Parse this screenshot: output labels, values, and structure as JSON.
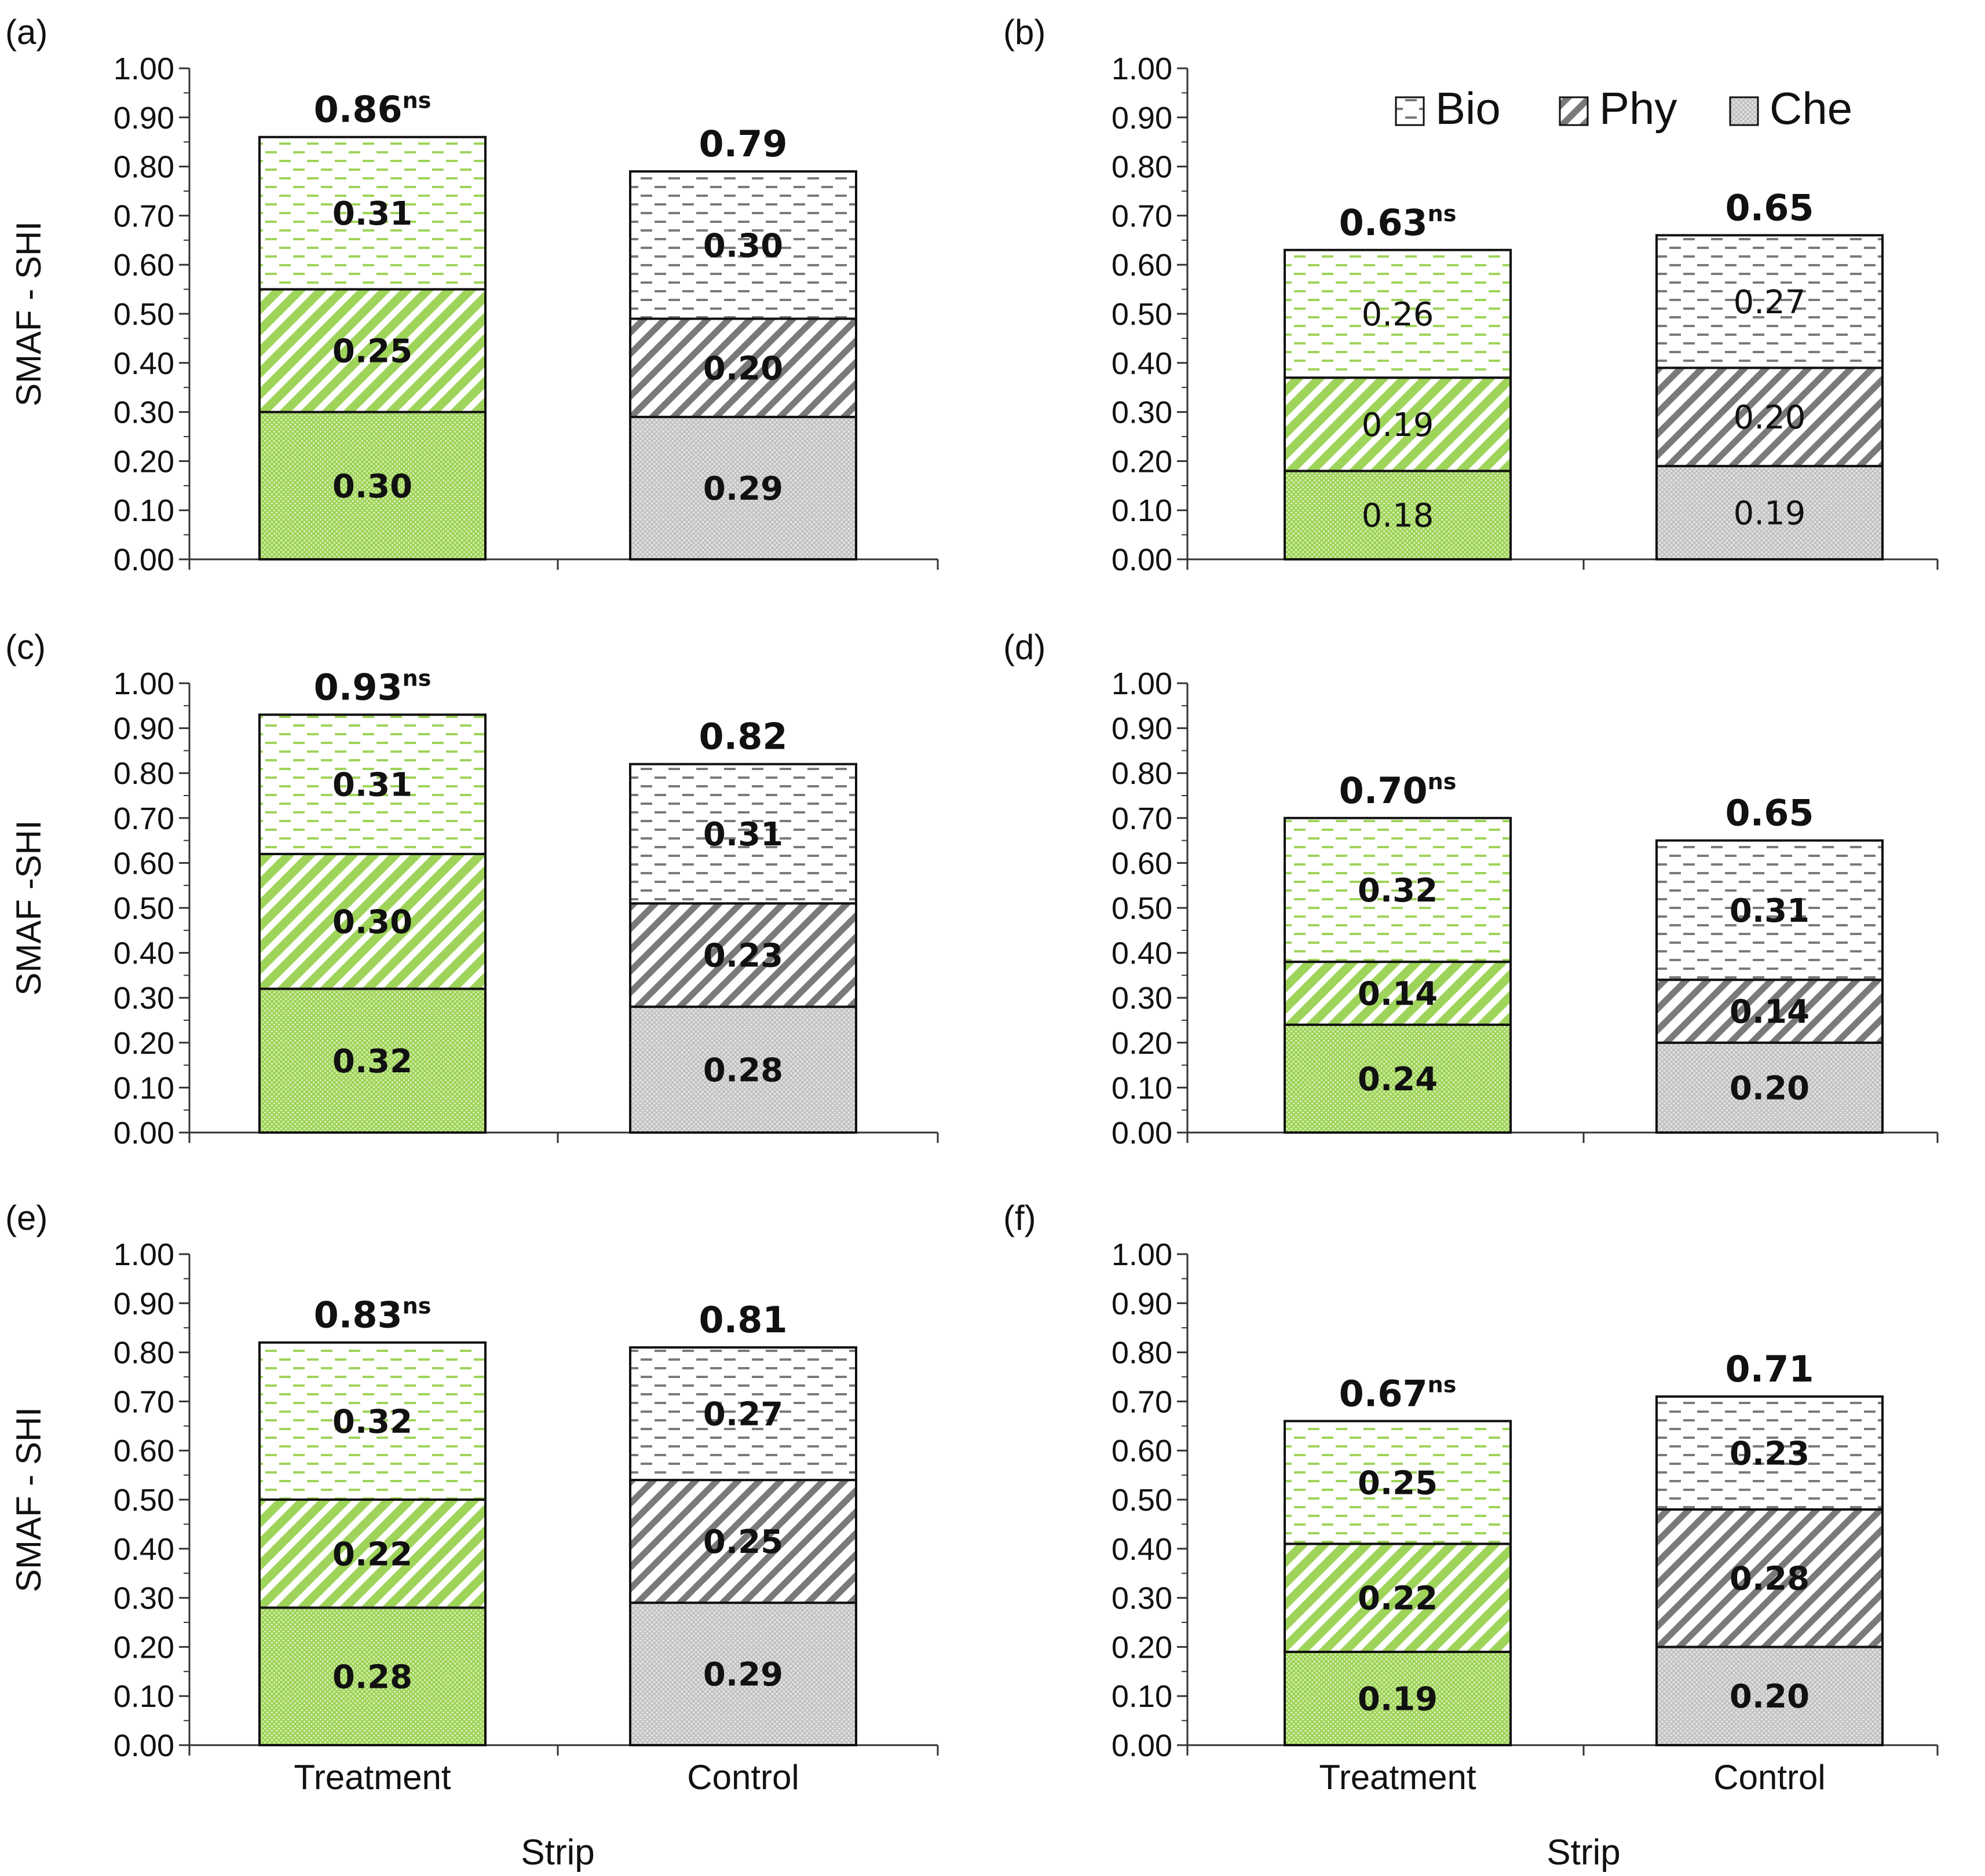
{
  "colors": {
    "treatment_fill": "#9fd45a",
    "treatment_line": "#ffffff",
    "control_fill": "#c4c4c4",
    "control_line": "#7a7a7a",
    "outline": "#111111"
  },
  "legend": [
    {
      "key": "Bio",
      "label": "Bio",
      "pattern": "dashes"
    },
    {
      "key": "Phy",
      "label": "Phy",
      "pattern": "diagonal"
    },
    {
      "key": "Che",
      "label": "Che",
      "pattern": "dots"
    }
  ],
  "chart_data": [
    {
      "type": "bar",
      "stacked": true,
      "panel_label": "(a)",
      "ylabel": "SMAF - SHI",
      "xlabel": "",
      "ylim": [
        0,
        1
      ],
      "ytick_step": 0.1,
      "categories": [
        "",
        ""
      ],
      "label_weight": "bold",
      "series": [
        {
          "name": "Che",
          "values": [
            0.3,
            0.29
          ]
        },
        {
          "name": "Phy",
          "values": [
            0.25,
            0.2
          ]
        },
        {
          "name": "Bio",
          "values": [
            0.31,
            0.3
          ]
        }
      ],
      "totals": [
        {
          "value": 0.86,
          "label": "0.86",
          "sup": "ns"
        },
        {
          "value": 0.79,
          "label": "0.79",
          "sup": ""
        }
      ]
    },
    {
      "type": "bar",
      "stacked": true,
      "panel_label": "(b)",
      "ylabel": "",
      "xlabel": "",
      "ylim": [
        0,
        1
      ],
      "ytick_step": 0.1,
      "categories": [
        "",
        ""
      ],
      "label_weight": "normal",
      "legend": "top-right",
      "series": [
        {
          "name": "Che",
          "values": [
            0.18,
            0.19
          ]
        },
        {
          "name": "Phy",
          "values": [
            0.19,
            0.2
          ]
        },
        {
          "name": "Bio",
          "values": [
            0.26,
            0.27
          ]
        }
      ],
      "totals": [
        {
          "value": 0.63,
          "label": "0.63",
          "sup": "ns"
        },
        {
          "value": 0.65,
          "label": "0.65",
          "sup": ""
        }
      ]
    },
    {
      "type": "bar",
      "stacked": true,
      "panel_label": "(c)",
      "ylabel": "SMAF -SHI",
      "xlabel": "",
      "ylim": [
        0,
        1
      ],
      "ytick_step": 0.1,
      "categories": [
        "",
        ""
      ],
      "label_weight": "bold",
      "series": [
        {
          "name": "Che",
          "values": [
            0.32,
            0.28
          ]
        },
        {
          "name": "Phy",
          "values": [
            0.3,
            0.23
          ]
        },
        {
          "name": "Bio",
          "values": [
            0.31,
            0.31
          ]
        }
      ],
      "totals": [
        {
          "value": 0.93,
          "label": "0.93",
          "sup": "ns"
        },
        {
          "value": 0.82,
          "label": "0.82",
          "sup": ""
        }
      ]
    },
    {
      "type": "bar",
      "stacked": true,
      "panel_label": "(d)",
      "ylabel": "",
      "xlabel": "",
      "ylim": [
        0,
        1
      ],
      "ytick_step": 0.1,
      "categories": [
        "",
        ""
      ],
      "label_weight": "bold",
      "series": [
        {
          "name": "Che",
          "values": [
            0.24,
            0.2
          ]
        },
        {
          "name": "Phy",
          "values": [
            0.14,
            0.14
          ]
        },
        {
          "name": "Bio",
          "values": [
            0.32,
            0.31
          ]
        }
      ],
      "totals": [
        {
          "value": 0.7,
          "label": "0.70",
          "sup": "ns"
        },
        {
          "value": 0.65,
          "label": "0.65",
          "sup": ""
        }
      ]
    },
    {
      "type": "bar",
      "stacked": true,
      "panel_label": "(e)",
      "ylabel": "SMAF - SHI",
      "xlabel": "Strip",
      "ylim": [
        0,
        1
      ],
      "ytick_step": 0.1,
      "categories": [
        "Treatment",
        "Control"
      ],
      "label_weight": "bold",
      "series": [
        {
          "name": "Che",
          "values": [
            0.28,
            0.29
          ]
        },
        {
          "name": "Phy",
          "values": [
            0.22,
            0.25
          ]
        },
        {
          "name": "Bio",
          "values": [
            0.32,
            0.27
          ]
        }
      ],
      "totals": [
        {
          "value": 0.83,
          "label": "0.83",
          "sup": "ns"
        },
        {
          "value": 0.81,
          "label": "0.81",
          "sup": ""
        }
      ]
    },
    {
      "type": "bar",
      "stacked": true,
      "panel_label": "(f)",
      "ylabel": "",
      "xlabel": "Strip",
      "ylim": [
        0,
        1
      ],
      "ytick_step": 0.1,
      "categories": [
        "Treatment",
        "Control"
      ],
      "label_weight": "bold",
      "series": [
        {
          "name": "Che",
          "values": [
            0.19,
            0.2
          ]
        },
        {
          "name": "Phy",
          "values": [
            0.22,
            0.28
          ]
        },
        {
          "name": "Bio",
          "values": [
            0.25,
            0.23
          ]
        }
      ],
      "totals": [
        {
          "value": 0.67,
          "label": "0.67",
          "sup": "ns"
        },
        {
          "value": 0.71,
          "label": "0.71",
          "sup": ""
        }
      ]
    }
  ]
}
